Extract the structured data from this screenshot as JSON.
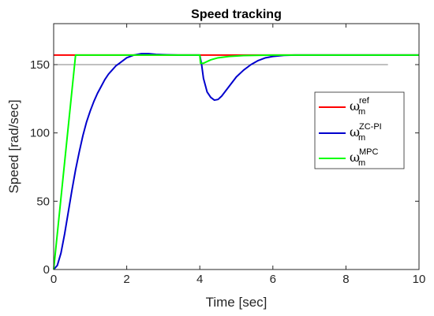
{
  "chart_data": {
    "type": "line",
    "title": "Speed tracking",
    "xlabel": "Time [sec]",
    "ylabel": "Speed [rad/sec]",
    "xlim": [
      0,
      10
    ],
    "ylim": [
      0,
      180
    ],
    "xticks": [
      0,
      2,
      4,
      6,
      8,
      10
    ],
    "yticks": [
      0,
      50,
      100,
      150
    ],
    "grid": false,
    "legend_position": "right",
    "series": [
      {
        "name": "ω_m^ref",
        "symbol": "ω",
        "sub": "m",
        "sup": "ref",
        "color": "#ff0000",
        "x": [
          0,
          10
        ],
        "y": [
          157,
          157
        ]
      },
      {
        "name": "ω_m^ZC-PI",
        "symbol": "ω",
        "sub": "m",
        "sup": "ZC-PI",
        "color": "#0000cd",
        "x": [
          0,
          0.1,
          0.2,
          0.3,
          0.4,
          0.5,
          0.6,
          0.7,
          0.8,
          0.9,
          1.0,
          1.1,
          1.2,
          1.3,
          1.4,
          1.5,
          1.6,
          1.7,
          1.8,
          1.9,
          2.0,
          2.2,
          2.4,
          2.6,
          2.8,
          3.0,
          3.4,
          3.8,
          4.0,
          4.05,
          4.1,
          4.2,
          4.3,
          4.4,
          4.5,
          4.6,
          4.8,
          5.0,
          5.2,
          5.4,
          5.6,
          5.8,
          6.0,
          6.3,
          6.6,
          7.0,
          8.0,
          10.0
        ],
        "y": [
          0,
          3,
          12,
          26,
          42,
          58,
          73,
          86,
          98,
          108,
          116,
          123,
          129,
          134,
          139,
          143,
          146,
          149,
          151,
          153,
          155,
          157,
          158,
          158,
          157.5,
          157.3,
          157,
          157,
          157,
          150,
          140,
          130,
          126,
          124,
          124.5,
          127,
          134,
          141,
          146,
          150,
          153,
          155,
          156,
          156.8,
          157,
          157,
          157,
          157
        ]
      },
      {
        "name": "ω_m^MPC",
        "symbol": "ω",
        "sub": "m",
        "sup": "MPC",
        "color": "#00ff00",
        "x": [
          0,
          0.6,
          0.7,
          4.0,
          4.02,
          4.1,
          4.3,
          4.5,
          4.8,
          5.2,
          6.0,
          10.0
        ],
        "y": [
          0,
          157,
          157,
          157,
          151,
          151,
          153.5,
          155,
          156,
          156.6,
          157,
          157
        ]
      }
    ],
    "extra_lines": [
      {
        "color": "#808080",
        "x": [
          0,
          9.15
        ],
        "y": [
          150,
          150
        ]
      }
    ]
  }
}
